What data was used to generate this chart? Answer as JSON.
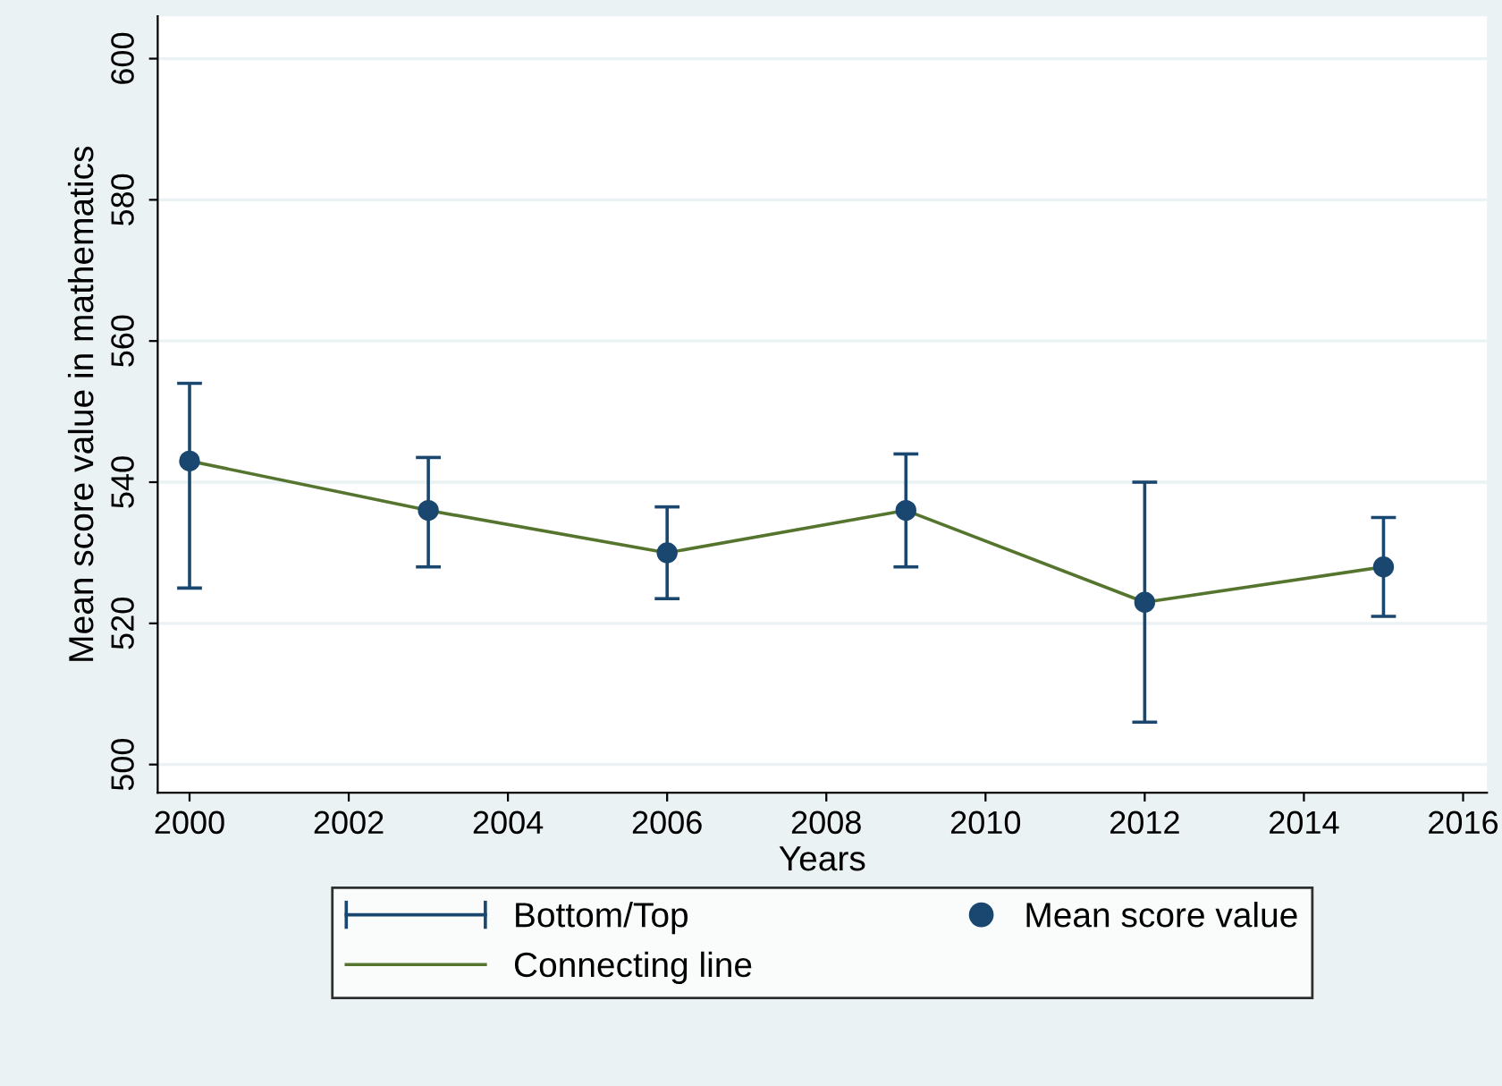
{
  "chart_data": {
    "type": "scatter",
    "xlabel": "Years",
    "ylabel": "Mean score value in mathematics",
    "x": [
      2000,
      2003,
      2006,
      2009,
      2012,
      2015
    ],
    "series": [
      {
        "name": "Mean score value",
        "marker": "circle",
        "color": "#1a476f",
        "values": [
          543,
          536,
          530,
          536,
          523,
          528
        ],
        "errors": [
          [
            525,
            554
          ],
          [
            528,
            543.5
          ],
          [
            523.5,
            536.5
          ],
          [
            528,
            544
          ],
          [
            506,
            540
          ],
          [
            521,
            535
          ]
        ]
      },
      {
        "name": "Connecting line",
        "type": "line",
        "marker": "none",
        "line_style": "solid",
        "color": "#55752f",
        "values": [
          543,
          536,
          530,
          536,
          523,
          528
        ]
      }
    ],
    "xlim": [
      1999.6,
      2016.3
    ],
    "ylim": [
      496,
      606
    ],
    "xticks": [
      2000,
      2002,
      2004,
      2006,
      2008,
      2010,
      2012,
      2014,
      2016
    ],
    "yticks": [
      500,
      520,
      540,
      560,
      580,
      600
    ],
    "annotations": [
      "Bottom/Top"
    ],
    "grid": "y",
    "legend": "bottom"
  }
}
